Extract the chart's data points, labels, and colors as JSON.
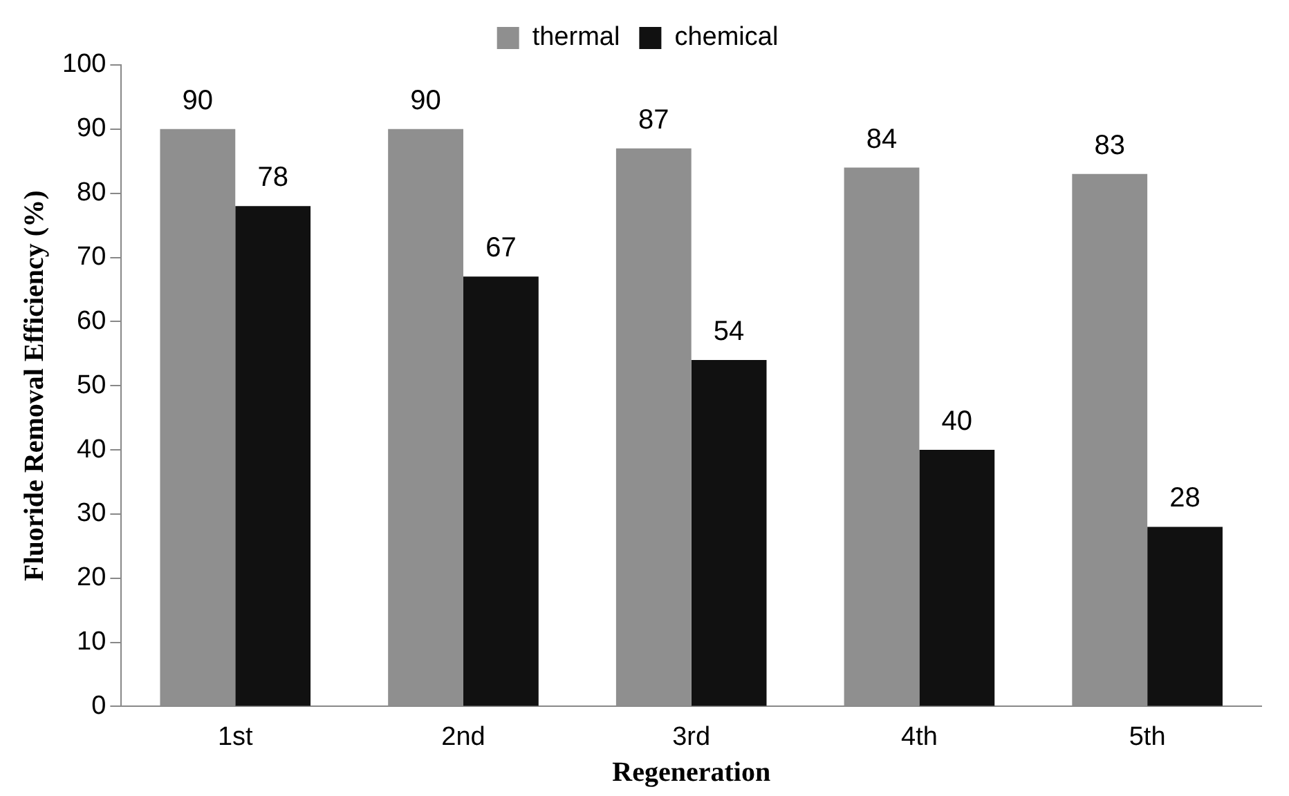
{
  "chart_data": {
    "type": "bar",
    "xlabel": "Regeneration",
    "ylabel": "Fluoride Removal Efficiency (%)",
    "categories": [
      "1st",
      "2nd",
      "3rd",
      "4th",
      "5th"
    ],
    "series": [
      {
        "name": "thermal",
        "color": "#8f8f8f",
        "values": [
          90,
          90,
          87,
          84,
          83
        ]
      },
      {
        "name": "chemical",
        "color": "#111111",
        "values": [
          78,
          67,
          54,
          40,
          28
        ]
      }
    ],
    "ylim": [
      0,
      100
    ],
    "yticks": [
      0,
      10,
      20,
      30,
      40,
      50,
      60,
      70,
      80,
      90,
      100
    ],
    "grid": false,
    "legend": "top",
    "data_labels": true
  }
}
